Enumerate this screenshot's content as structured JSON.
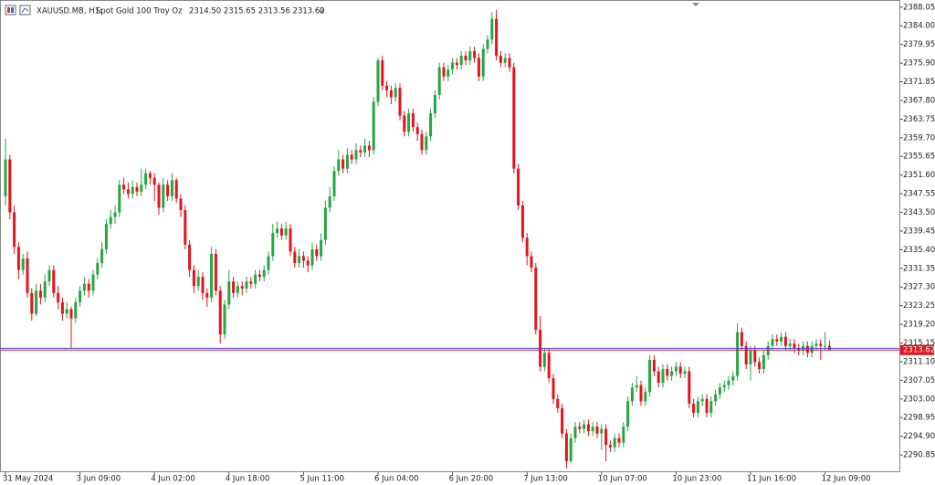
{
  "chart_data": {
    "type": "candlestick",
    "symbol": "XAUUSD.MB, H1:",
    "description": "Spot Gold 100 Troy Oz",
    "header_values": "2314.50 2315.65 2313.56 2313.62",
    "header_volume": "0",
    "up_color": "#26a641",
    "down_color": "#e3141d",
    "ylim": [
      2287.3,
      2389.6
    ],
    "yticks": [
      2388.05,
      {
        "value": 2384.0,
        "label": "2384.00"
      },
      2379.95,
      {
        "value": 2375.9,
        "label": "2375.90"
      },
      2371.85,
      {
        "value": 2367.8,
        "label": "2367.80"
      },
      2363.75,
      {
        "value": 2359.7,
        "label": "2359.70"
      },
      2355.65,
      {
        "value": 2351.6,
        "label": "2351.60"
      },
      2347.55,
      {
        "value": 2343.5,
        "label": "2343.50"
      },
      2339.45,
      {
        "value": 2335.4,
        "label": "2335.40"
      },
      2331.35,
      {
        "value": 2327.3,
        "label": "2327.30"
      },
      2323.25,
      {
        "value": 2319.2,
        "label": "2319.20"
      },
      2315.15,
      {
        "value": 2311.1,
        "label": "2311.10"
      },
      2307.05,
      {
        "value": 2303.0,
        "label": "2303.00"
      },
      2298.95,
      {
        "value": 2294.9,
        "label": "2294.90"
      },
      2290.85
    ],
    "bid": {
      "value": 2313.62,
      "color": "#e3141d"
    },
    "ask": {
      "value": 2314.0,
      "color": "#3c50e6"
    },
    "categories": [
      "31 May 2024",
      null,
      null,
      null,
      null,
      null,
      null,
      null,
      null,
      null,
      null,
      null,
      null,
      null,
      null,
      null,
      null,
      "3 Jun 09:00",
      null,
      null,
      null,
      null,
      null,
      null,
      null,
      null,
      null,
      null,
      null,
      null,
      null,
      null,
      null,
      null,
      "4 Jun 02:00",
      null,
      null,
      null,
      null,
      null,
      null,
      null,
      null,
      null,
      null,
      null,
      null,
      null,
      null,
      null,
      null,
      "4 Jun 18:00",
      null,
      null,
      null,
      null,
      null,
      null,
      null,
      null,
      null,
      null,
      null,
      null,
      null,
      null,
      null,
      null,
      "5 Jun 11:00",
      null,
      null,
      null,
      null,
      null,
      null,
      null,
      null,
      null,
      null,
      null,
      null,
      null,
      null,
      null,
      null,
      "6 Jun 04:00",
      null,
      null,
      null,
      null,
      null,
      null,
      null,
      null,
      null,
      null,
      null,
      null,
      null,
      null,
      null,
      null,
      "6 Jun 20:00",
      null,
      null,
      null,
      null,
      null,
      null,
      null,
      null,
      null,
      null,
      null,
      null,
      null,
      null,
      null,
      null,
      "7 Jun 13:00",
      null,
      null,
      null,
      null,
      null,
      null,
      null,
      null,
      null,
      null,
      null,
      null,
      null,
      null,
      null,
      null,
      "10 Jun 07:00",
      null,
      null,
      null,
      null,
      null,
      null,
      null,
      null,
      null,
      null,
      null,
      null,
      null,
      null,
      null,
      null,
      "10 Jun 23:00",
      null,
      null,
      null,
      null,
      null,
      null,
      null,
      null,
      null,
      null,
      null,
      null,
      null,
      null,
      null,
      null,
      "11 Jun 16:00",
      null,
      null,
      null,
      null,
      null,
      null,
      null,
      null,
      null,
      null,
      null,
      null,
      null,
      null,
      null,
      null,
      "12 Jun 09:00",
      null
    ],
    "open": [
      2347,
      2355,
      2343.5,
      2336,
      2331,
      2333.5,
      2326,
      2321.5,
      2326.5,
      2325,
      2328.5,
      2331,
      2326,
      2324,
      2321.5,
      2322.5,
      2320.5,
      2324,
      2326.5,
      2328,
      2326.5,
      2330,
      2332.5,
      2335.5,
      2341,
      2342.5,
      2343.5,
      2349.5,
      2348.5,
      2347.5,
      2349,
      2348,
      2349.5,
      2352,
      2351,
      2349.5,
      2344.5,
      2349.5,
      2347,
      2350.5,
      2346.5,
      2344,
      2336.5,
      2331,
      2327.5,
      2329.5,
      2326,
      2325,
      2334.5,
      2326.5,
      2317,
      2323.5,
      2328.5,
      2326,
      2327.5,
      2327,
      2328.5,
      2328,
      2330,
      2329.5,
      2331,
      2334,
      2339,
      2340,
      2338.5,
      2340,
      2335,
      2332.5,
      2334,
      2333,
      2332,
      2335.5,
      2334,
      2337.5,
      2344.5,
      2347,
      2352.5,
      2355,
      2353,
      2356,
      2355,
      2357,
      2356.5,
      2358,
      2357,
      2367.5,
      2376.5,
      2371,
      2370,
      2368.5,
      2370.5,
      2364.5,
      2361,
      2365,
      2362,
      2360.5,
      2357,
      2360,
      2365,
      2369,
      2375,
      2373,
      2374.5,
      2376,
      2375.5,
      2377.5,
      2376.5,
      2378.5,
      2377,
      2373,
      2379,
      2381,
      2385.5,
      2377.5,
      2376,
      2377,
      2375,
      2353,
      2345,
      2338,
      2334,
      2331.5,
      2318,
      2310,
      2313,
      2307.5,
      2303,
      2301,
      2295.5,
      2289.5,
      2294.5,
      2297,
      2296.5,
      2297.5,
      2296,
      2297,
      2295.5,
      2296.5,
      2293,
      2292.5,
      2294.5,
      2293.5,
      2297,
      2302.5,
      2305.5,
      2306,
      2302.5,
      2304.5,
      2311.5,
      2309,
      2306.5,
      2309.5,
      2308,
      2309,
      2310,
      2308.5,
      2309,
      2302,
      2300,
      2302.5,
      2303,
      2300,
      2302.5,
      2304,
      2305.5,
      2306,
      2307,
      2308,
      2317.5,
      2314.5,
      2310.5,
      2313.5,
      2311,
      2309.5,
      2312.5,
      2314.5,
      2316,
      2315.5,
      2316.5,
      2314.5,
      2315,
      2314,
      2313.5,
      2314.5,
      2313,
      2314.5,
      2315,
      2314.5,
      2314.5
    ],
    "high": [
      2359.5,
      2356,
      2345,
      2337,
      2334.5,
      2335,
      2327,
      2328,
      2328,
      2330,
      2332,
      2332,
      2327.5,
      2325,
      2324,
      2323,
      2325,
      2327.5,
      2329.5,
      2329,
      2331,
      2333.5,
      2337,
      2342,
      2344,
      2345,
      2350.5,
      2351,
      2350,
      2350.5,
      2350,
      2353,
      2353,
      2352.5,
      2352,
      2350,
      2351,
      2350.5,
      2352,
      2351,
      2347.5,
      2345,
      2337.5,
      2332,
      2331,
      2330.5,
      2327,
      2336,
      2335.5,
      2327.5,
      2324.5,
      2331,
      2329.5,
      2328.5,
      2328.5,
      2329.5,
      2329.5,
      2331,
      2331,
      2332,
      2335,
      2341,
      2341.5,
      2341,
      2341.5,
      2341,
      2336,
      2335.5,
      2335,
      2334,
      2337,
      2336.5,
      2339,
      2346,
      2349,
      2353.5,
      2357,
      2356,
      2357.5,
      2357,
      2358.5,
      2358,
      2359.5,
      2359,
      2368.5,
      2377,
      2377.5,
      2372,
      2371,
      2371.5,
      2371.5,
      2365.5,
      2366,
      2366,
      2363,
      2361.5,
      2361,
      2366,
      2370,
      2376,
      2376,
      2375.5,
      2377,
      2377,
      2378.5,
      2378.5,
      2379.5,
      2379.5,
      2378,
      2380,
      2382,
      2387,
      2387.5,
      2378.5,
      2378,
      2378,
      2376,
      2354,
      2346,
      2339,
      2335,
      2332.5,
      2321,
      2314,
      2314,
      2308.5,
      2304,
      2302,
      2296.5,
      2295.5,
      2298,
      2298,
      2298.5,
      2298.5,
      2298,
      2298,
      2297.5,
      2297.5,
      2294,
      2295.5,
      2295.5,
      2298,
      2303.5,
      2306.5,
      2308,
      2307,
      2305.5,
      2312.5,
      2312.5,
      2310,
      2310.5,
      2310.5,
      2310,
      2311,
      2311,
      2310,
      2310,
      2303,
      2303.5,
      2304,
      2304,
      2303.5,
      2305,
      2306.5,
      2307,
      2308,
      2309,
      2319.5,
      2318.5,
      2315.5,
      2314.5,
      2314.5,
      2312,
      2313.5,
      2315.5,
      2317,
      2317,
      2317.5,
      2317.5,
      2316,
      2316,
      2315,
      2315.5,
      2315.5,
      2315.5,
      2316,
      2316,
      2317.5,
      2315.65
    ],
    "low": [
      2345,
      2342,
      2334.5,
      2329,
      2330,
      2325,
      2320,
      2321,
      2323.5,
      2324,
      2327.5,
      2325,
      2322.5,
      2320,
      2320.5,
      2314,
      2319.5,
      2323,
      2325.5,
      2325,
      2325.5,
      2329,
      2331.5,
      2334.5,
      2340,
      2341,
      2342.5,
      2347.5,
      2346.5,
      2346.5,
      2347,
      2347,
      2348.5,
      2349.5,
      2346,
      2343,
      2343.5,
      2346,
      2346,
      2345.5,
      2342.5,
      2335.5,
      2329.5,
      2326,
      2326.5,
      2324.5,
      2323,
      2324,
      2325.5,
      2315,
      2316,
      2322.5,
      2325,
      2325,
      2325.5,
      2326,
      2327,
      2327,
      2328.5,
      2328.5,
      2330,
      2333,
      2338,
      2337.5,
      2337.5,
      2334,
      2331.5,
      2331.5,
      2331.5,
      2330.5,
      2331,
      2333,
      2333,
      2336.5,
      2343.5,
      2346,
      2351.5,
      2352,
      2352,
      2354,
      2354,
      2355.5,
      2355.5,
      2355.5,
      2356,
      2366.5,
      2370,
      2368.5,
      2367,
      2367.5,
      2363.5,
      2360,
      2360,
      2361,
      2359,
      2356,
      2356,
      2359,
      2364,
      2368,
      2372,
      2372,
      2373.5,
      2374.5,
      2374.5,
      2375.5,
      2375.5,
      2376,
      2372,
      2372,
      2378,
      2380,
      2376.5,
      2375,
      2375,
      2374,
      2352,
      2344,
      2337,
      2332,
      2330.5,
      2317,
      2309,
      2309,
      2306.5,
      2302,
      2300,
      2294.5,
      2288,
      2289,
      2293.5,
      2295.5,
      2295.5,
      2295,
      2295,
      2294.5,
      2292,
      2289.5,
      2291.5,
      2291.5,
      2292.5,
      2292.5,
      2296,
      2301.5,
      2304.5,
      2301.5,
      2301.5,
      2303.5,
      2308,
      2305.5,
      2305.5,
      2307,
      2307,
      2308,
      2307.5,
      2307.5,
      2301,
      2299,
      2299,
      2301.5,
      2299,
      2299,
      2301.5,
      2303,
      2304.5,
      2305,
      2306,
      2307,
      2313.5,
      2309.5,
      2307,
      2310,
      2308.5,
      2308.5,
      2311.5,
      2313.5,
      2314.5,
      2314.5,
      2313.5,
      2313.5,
      2313,
      2312.5,
      2312.5,
      2312,
      2312,
      2313.5,
      2311.5,
      2313.5,
      2313.56
    ],
    "close": [
      2355,
      2343.5,
      2336,
      2331,
      2333.5,
      2326,
      2321.5,
      2326.5,
      2325,
      2328.5,
      2331,
      2326,
      2324,
      2321.5,
      2322.5,
      2320.5,
      2324,
      2326.5,
      2328,
      2326.5,
      2330,
      2332.5,
      2335.5,
      2341,
      2342.5,
      2343.5,
      2349.5,
      2348.5,
      2347.5,
      2349,
      2348,
      2349.5,
      2352,
      2351,
      2349.5,
      2344.5,
      2349.5,
      2347,
      2350.5,
      2346.5,
      2344,
      2336.5,
      2331,
      2327.5,
      2329.5,
      2326,
      2325,
      2334.5,
      2326.5,
      2317,
      2323.5,
      2328.5,
      2326,
      2327.5,
      2327,
      2328.5,
      2328,
      2330,
      2329.5,
      2331,
      2334,
      2339,
      2340,
      2338.5,
      2340,
      2335,
      2332.5,
      2334,
      2333,
      2332,
      2335.5,
      2334,
      2337.5,
      2344.5,
      2347,
      2352.5,
      2355,
      2353,
      2356,
      2355,
      2357,
      2356.5,
      2358,
      2357,
      2367.5,
      2376.5,
      2371,
      2370,
      2368.5,
      2370.5,
      2364.5,
      2361,
      2365,
      2362,
      2360.5,
      2357,
      2360,
      2365,
      2369,
      2375,
      2373,
      2374.5,
      2376,
      2375.5,
      2377.5,
      2376.5,
      2378.5,
      2377,
      2373,
      2379,
      2381,
      2385.5,
      2377.5,
      2376,
      2377,
      2375,
      2353,
      2345,
      2338,
      2334,
      2331.5,
      2318,
      2310,
      2313,
      2307.5,
      2303,
      2301,
      2295.5,
      2289.5,
      2294.5,
      2297,
      2296.5,
      2297.5,
      2296,
      2297,
      2295.5,
      2296.5,
      2293,
      2292.5,
      2294.5,
      2293.5,
      2297,
      2302.5,
      2305.5,
      2306,
      2302.5,
      2304.5,
      2311.5,
      2309,
      2306.5,
      2309.5,
      2308,
      2309,
      2310,
      2308.5,
      2309,
      2302,
      2300,
      2302.5,
      2303,
      2300,
      2302.5,
      2304,
      2305.5,
      2306,
      2307,
      2308,
      2317.5,
      2314.5,
      2310.5,
      2313.5,
      2311,
      2309.5,
      2312.5,
      2314.5,
      2316,
      2315.5,
      2316.5,
      2314.5,
      2315,
      2314,
      2313.5,
      2314.5,
      2313,
      2314.5,
      2315,
      2314.5,
      2314.5,
      2313.62
    ]
  }
}
